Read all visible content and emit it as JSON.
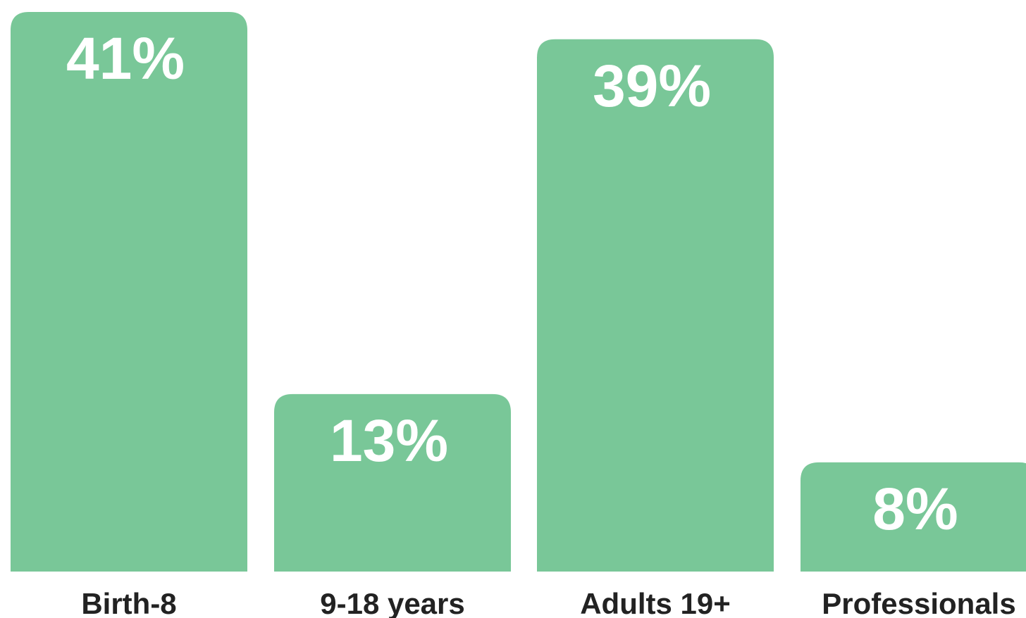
{
  "chart_data": {
    "type": "bar",
    "categories": [
      "Birth-8",
      "9-18 years",
      "Adults 19+",
      "Professionals"
    ],
    "values": [
      41,
      13,
      39,
      8
    ],
    "value_labels": [
      "41%",
      "13%",
      "39%",
      "8%"
    ],
    "unit": "%",
    "title": "",
    "xlabel": "",
    "ylabel": "",
    "ylim": [
      0,
      41
    ],
    "grid": false,
    "legend": "none",
    "bar_color": "#79c798",
    "label_color": "#ffffff",
    "category_color": "#222222"
  }
}
